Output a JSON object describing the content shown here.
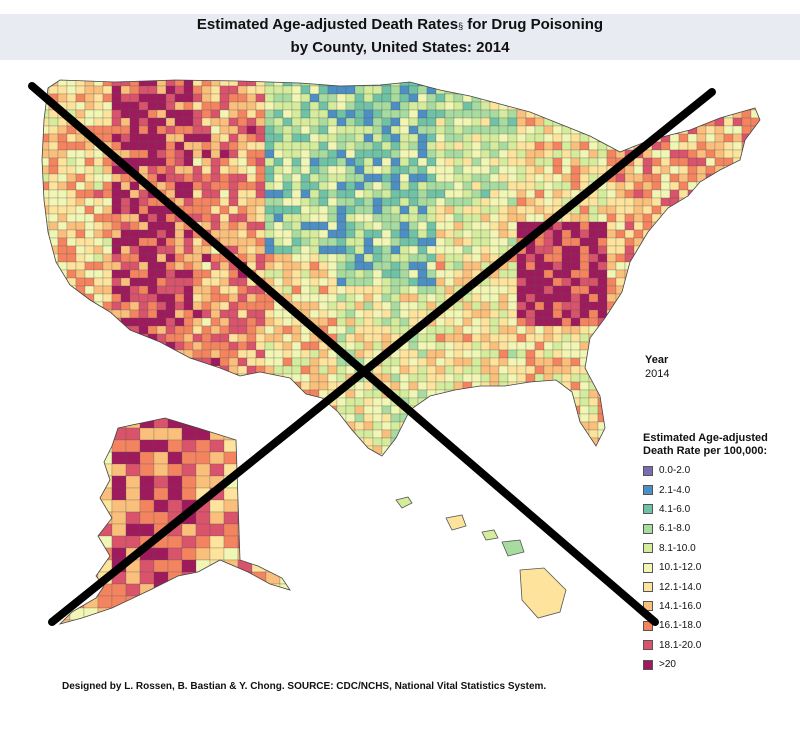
{
  "title": {
    "line1_prefix": "Estimated Age-adjusted Death Rates",
    "line1_mark": "§",
    "line1_suffix": " for Drug Poisoning",
    "line2": "by County, United States:  2014"
  },
  "year": {
    "label": "Year",
    "value": "2014"
  },
  "legend": {
    "title_line1": "Estimated Age-adjusted",
    "title_line2": "Death Rate per 100,000:",
    "items": [
      {
        "label": "0.0-2.0",
        "color": "#7b6bb3"
      },
      {
        "label": "2.1-4.0",
        "color": "#4d8fc2"
      },
      {
        "label": "4.1-6.0",
        "color": "#6fc2a5"
      },
      {
        "label": "6.1-8.0",
        "color": "#a8dba0"
      },
      {
        "label": "8.1-10.0",
        "color": "#d4ec9c"
      },
      {
        "label": "10.1-12.0",
        "color": "#f1f6b4"
      },
      {
        "label": "12.1-14.0",
        "color": "#fde39b"
      },
      {
        "label": "14.1-16.0",
        "color": "#fbbf7c"
      },
      {
        "label": "16.1-18.0",
        "color": "#f4845f"
      },
      {
        "label": "18.1-20.0",
        "color": "#d9536b"
      },
      {
        "label": ">20",
        "color": "#9e1a5c"
      }
    ]
  },
  "credit": "Designed by L. Rossen, B. Bastian & Y. Chong. SOURCE: CDC/NCHS, National Vital Statistics System."
}
